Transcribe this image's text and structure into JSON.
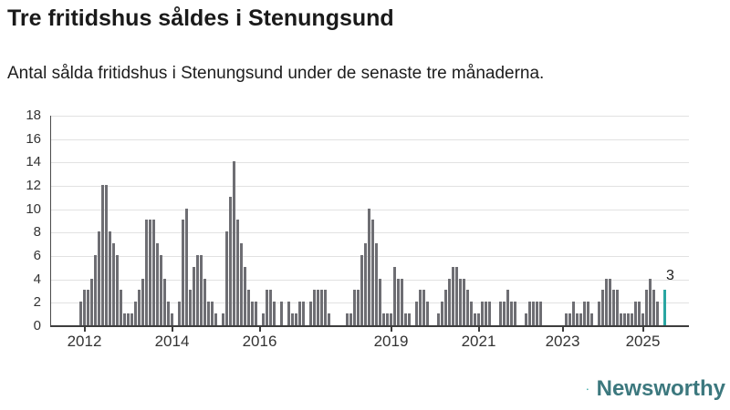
{
  "header": {
    "title": "Tre fritidshus såldes i Stenungsund",
    "subtitle": "Antal sålda fritidshus i Stenungsund under de senaste tre månaderna."
  },
  "chart_data": {
    "type": "bar",
    "title": "Tre fritidshus såldes i Stenungsund",
    "subtitle": "Antal sålda fritidshus i Stenungsund under de senaste tre månaderna.",
    "x_unit": "month (rolling 3-month window), Dec 2011 - latest",
    "ylim": [
      0,
      18
    ],
    "yticks": [
      0,
      2,
      4,
      6,
      8,
      10,
      12,
      14,
      16,
      18
    ],
    "grid": true,
    "values": [
      2,
      3,
      3,
      4,
      6,
      8,
      12,
      12,
      8,
      7,
      6,
      3,
      1,
      1,
      1,
      2,
      3,
      4,
      9,
      9,
      9,
      7,
      6,
      4,
      2,
      1,
      0,
      2,
      9,
      10,
      3,
      5,
      6,
      6,
      4,
      2,
      2,
      1,
      0,
      1,
      8,
      11,
      14,
      9,
      7,
      5,
      3,
      2,
      2,
      0,
      1,
      3,
      3,
      2,
      0,
      2,
      0,
      2,
      1,
      1,
      2,
      2,
      0,
      2,
      3,
      3,
      3,
      3,
      1,
      0,
      0,
      0,
      0,
      1,
      1,
      3,
      3,
      6,
      7,
      10,
      9,
      7,
      4,
      1,
      1,
      1,
      5,
      4,
      4,
      1,
      1,
      0,
      2,
      3,
      3,
      2,
      0,
      0,
      1,
      2,
      3,
      4,
      5,
      5,
      4,
      4,
      3,
      2,
      1,
      1,
      2,
      2,
      2,
      0,
      0,
      2,
      2,
      3,
      2,
      2,
      0,
      0,
      1,
      2,
      2,
      2,
      2,
      0,
      0,
      0,
      0,
      0,
      0,
      1,
      1,
      2,
      1,
      1,
      2,
      2,
      1,
      0,
      2,
      3,
      4,
      4,
      3,
      3,
      1,
      1,
      1,
      1,
      2,
      2,
      1,
      3,
      4,
      3,
      2,
      0,
      3
    ],
    "xticks": [
      {
        "label": "2012",
        "index": 1
      },
      {
        "label": "2014",
        "index": 25
      },
      {
        "label": "2016",
        "index": 49
      },
      {
        "label": "2019",
        "index": 85
      },
      {
        "label": "2021",
        "index": 109
      },
      {
        "label": "2023",
        "index": 132
      },
      {
        "label": "2025",
        "index": 154
      }
    ],
    "highlight": {
      "index": 160,
      "value": 3,
      "label": "3"
    },
    "colors": {
      "bar": "#6e6e73",
      "highlight": "#2aa6a2",
      "grid": "#e2e2e2",
      "axis": "#3d3d3d",
      "text": "#1a1a1a",
      "tick_label": "#333333"
    },
    "legend": null
  },
  "logo": {
    "text": "Newsworthy",
    "icon": "newsworthy-speech-bubble-bar-chart-icon",
    "icon_color": "#2ba6a3",
    "text_color": "#3c787e"
  }
}
